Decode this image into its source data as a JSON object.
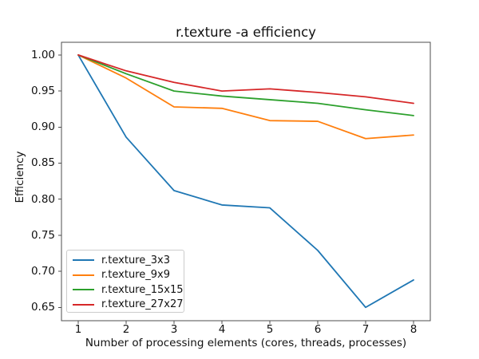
{
  "chart_data": {
    "type": "line",
    "title": "r.texture -a efficiency",
    "xlabel": "Number of processing elements (cores, threads, processes)",
    "ylabel": "Efficiency",
    "x": [
      1,
      2,
      3,
      4,
      5,
      6,
      7,
      8
    ],
    "series": [
      {
        "name": "r.texture_3x3",
        "color": "#1f77b4",
        "values": [
          1.0,
          0.886,
          0.812,
          0.792,
          0.788,
          0.729,
          0.65,
          0.688
        ]
      },
      {
        "name": "r.texture_9x9",
        "color": "#ff7f0e",
        "values": [
          1.0,
          0.968,
          0.928,
          0.926,
          0.909,
          0.908,
          0.884,
          0.889
        ]
      },
      {
        "name": "r.texture_15x15",
        "color": "#2ca02c",
        "values": [
          1.0,
          0.974,
          0.95,
          0.943,
          0.938,
          0.933,
          0.924,
          0.916
        ]
      },
      {
        "name": "r.texture_27x27",
        "color": "#d62728",
        "values": [
          1.0,
          0.978,
          0.962,
          0.95,
          0.953,
          0.948,
          0.942,
          0.933
        ]
      }
    ],
    "xlim": [
      0.65,
      8.35
    ],
    "ylim": [
      0.6315,
      1.0176
    ],
    "xticks": [
      1,
      2,
      3,
      4,
      5,
      6,
      7,
      8
    ],
    "xtick_labels": [
      "1",
      "2",
      "3",
      "4",
      "5",
      "6",
      "7",
      "8"
    ],
    "ytick_values": [
      0.65,
      0.7,
      0.75,
      0.8,
      0.85,
      0.9,
      0.95,
      1.0
    ],
    "ytick_labels": [
      "0.65",
      "0.70",
      "0.75",
      "0.80",
      "0.85",
      "0.90",
      "0.95",
      "1.00"
    ],
    "grid": false,
    "legend_position": "lower-left",
    "axis_color": "#4d4d4d",
    "background_color": "#ffffff"
  }
}
